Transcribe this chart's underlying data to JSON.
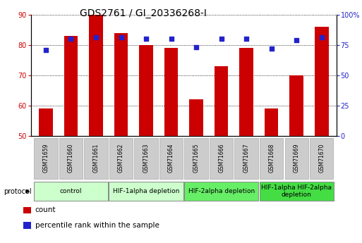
{
  "title": "GDS2761 / GI_20336268-I",
  "samples": [
    "GSM71659",
    "GSM71660",
    "GSM71661",
    "GSM71662",
    "GSM71663",
    "GSM71664",
    "GSM71665",
    "GSM71666",
    "GSM71667",
    "GSM71668",
    "GSM71669",
    "GSM71670"
  ],
  "count_values": [
    59,
    83,
    90,
    84,
    80,
    79,
    62,
    73,
    79,
    59,
    70,
    86
  ],
  "percentile_values": [
    71,
    80,
    81,
    81,
    80,
    80,
    73,
    80,
    80,
    72,
    79,
    81
  ],
  "ylim_left": [
    50,
    90
  ],
  "ylim_right": [
    0,
    100
  ],
  "yticks_left": [
    50,
    60,
    70,
    80,
    90
  ],
  "yticks_right": [
    0,
    25,
    50,
    75,
    100
  ],
  "bar_color": "#cc0000",
  "dot_color": "#2222cc",
  "bar_bottom": 50,
  "groups": [
    {
      "label": "control",
      "start": 0,
      "end": 2,
      "color": "#ccffcc"
    },
    {
      "label": "HIF-1alpha depletion",
      "start": 3,
      "end": 5,
      "color": "#ccffcc"
    },
    {
      "label": "HIF-2alpha depletion",
      "start": 6,
      "end": 8,
      "color": "#66ee66"
    },
    {
      "label": "HIF-1alpha HIF-2alpha\ndepletion",
      "start": 9,
      "end": 11,
      "color": "#44dd44"
    }
  ],
  "legend_items": [
    {
      "label": "count",
      "color": "#cc0000"
    },
    {
      "label": "percentile rank within the sample",
      "color": "#2222cc"
    }
  ],
  "left_tick_color": "#cc0000",
  "right_tick_color": "#2222cc",
  "title_fontsize": 10,
  "tick_fontsize": 7,
  "sample_fontsize": 5.5,
  "group_fontsize": 6.5,
  "legend_fontsize": 7.5
}
